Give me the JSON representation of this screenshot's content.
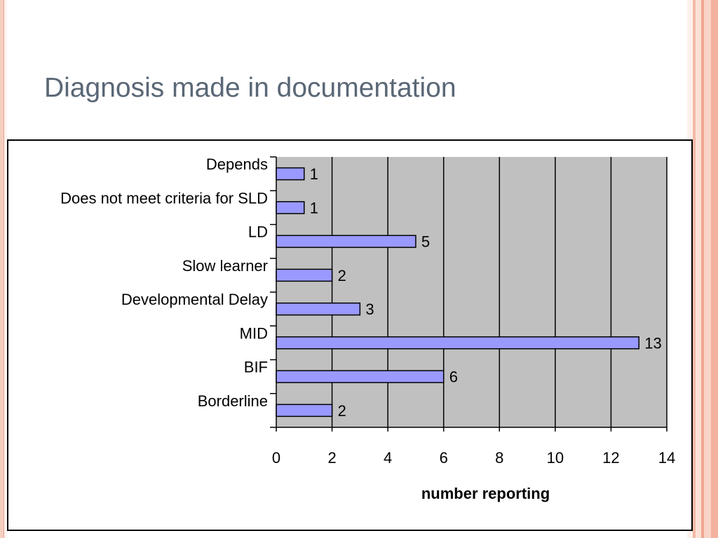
{
  "slide": {
    "title": "Diagnosis made in documentation"
  },
  "colors": {
    "bar_fill": "#9999ff",
    "plot_background": "#c0c0c0",
    "title_color": "#5a6776"
  },
  "chart_data": {
    "type": "bar",
    "orientation": "horizontal",
    "categories": [
      "Borderline",
      "BIF",
      "MID",
      "Developmental Delay",
      "Slow learner",
      "LD",
      "Does not meet criteria for SLD",
      "Depends"
    ],
    "values": [
      2,
      6,
      13,
      3,
      2,
      5,
      1,
      1
    ],
    "data_labels": [
      "2",
      "6",
      "13",
      "3",
      "2",
      "5",
      "1",
      "1"
    ],
    "xlabel": "number reporting",
    "ylabel": "",
    "xlim": [
      0,
      14
    ],
    "xticks": [
      0,
      2,
      4,
      6,
      8,
      10,
      12,
      14
    ],
    "xtick_labels": [
      "0",
      "2",
      "4",
      "6",
      "8",
      "10",
      "12",
      "14"
    ],
    "grid": "vertical",
    "legend": "none"
  }
}
